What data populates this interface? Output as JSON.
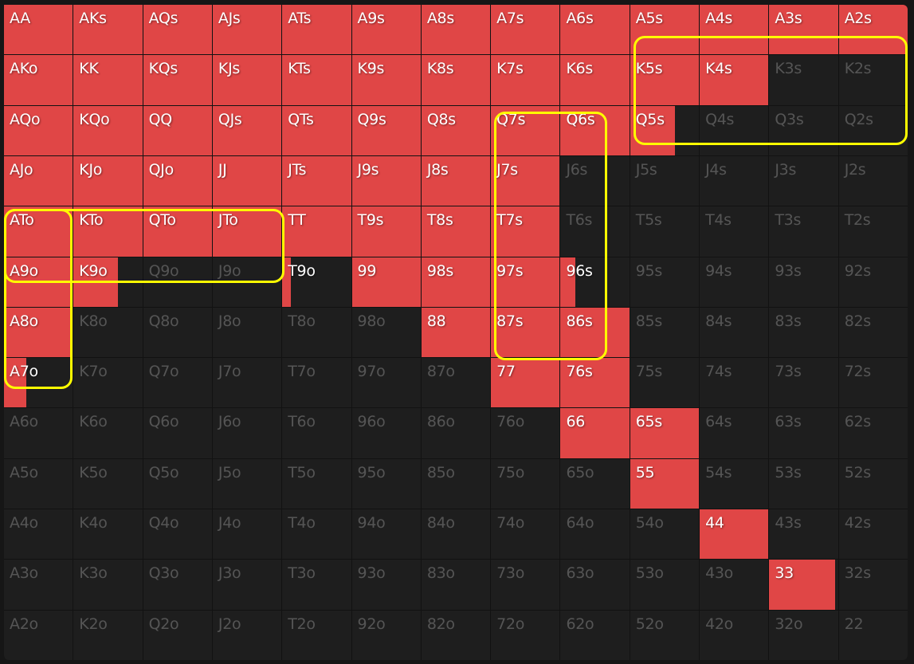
{
  "colors": {
    "raise": "#e04646",
    "empty": "#1e1e1e",
    "highlight": "#ffff00",
    "label_active": "#ffffff",
    "label_inactive": "#555555"
  },
  "hands": [
    [
      "AA",
      "AKs",
      "AQs",
      "AJs",
      "ATs",
      "A9s",
      "A8s",
      "A7s",
      "A6s",
      "A5s",
      "A4s",
      "A3s",
      "A2s"
    ],
    [
      "AKo",
      "KK",
      "KQs",
      "KJs",
      "KTs",
      "K9s",
      "K8s",
      "K7s",
      "K6s",
      "K5s",
      "K4s",
      "K3s",
      "K2s"
    ],
    [
      "AQo",
      "KQo",
      "QQ",
      "QJs",
      "QTs",
      "Q9s",
      "Q8s",
      "Q7s",
      "Q6s",
      "Q5s",
      "Q4s",
      "Q3s",
      "Q2s"
    ],
    [
      "AJo",
      "KJo",
      "QJo",
      "JJ",
      "JTs",
      "J9s",
      "J8s",
      "J7s",
      "J6s",
      "J5s",
      "J4s",
      "J3s",
      "J2s"
    ],
    [
      "ATo",
      "KTo",
      "QTo",
      "JTo",
      "TT",
      "T9s",
      "T8s",
      "T7s",
      "T6s",
      "T5s",
      "T4s",
      "T3s",
      "T2s"
    ],
    [
      "A9o",
      "K9o",
      "Q9o",
      "J9o",
      "T9o",
      "99",
      "98s",
      "97s",
      "96s",
      "95s",
      "94s",
      "93s",
      "92s"
    ],
    [
      "A8o",
      "K8o",
      "Q8o",
      "J8o",
      "T8o",
      "98o",
      "88",
      "87s",
      "86s",
      "85s",
      "84s",
      "83s",
      "82s"
    ],
    [
      "A7o",
      "K7o",
      "Q7o",
      "J7o",
      "T7o",
      "97o",
      "87o",
      "77",
      "76s",
      "75s",
      "74s",
      "73s",
      "72s"
    ],
    [
      "A6o",
      "K6o",
      "Q6o",
      "J6o",
      "T6o",
      "96o",
      "86o",
      "76o",
      "66",
      "65s",
      "64s",
      "63s",
      "62s"
    ],
    [
      "A5o",
      "K5o",
      "Q5o",
      "J5o",
      "T5o",
      "95o",
      "85o",
      "75o",
      "65o",
      "55",
      "54s",
      "53s",
      "52s"
    ],
    [
      "A4o",
      "K4o",
      "Q4o",
      "J4o",
      "T4o",
      "94o",
      "84o",
      "74o",
      "64o",
      "54o",
      "44",
      "43s",
      "42s"
    ],
    [
      "A3o",
      "K3o",
      "Q3o",
      "J3o",
      "T3o",
      "93o",
      "83o",
      "73o",
      "63o",
      "53o",
      "43o",
      "33",
      "32s"
    ],
    [
      "A2o",
      "K2o",
      "Q2o",
      "J2o",
      "T2o",
      "92o",
      "82o",
      "72o",
      "62o",
      "52o",
      "42o",
      "32o",
      "22"
    ]
  ],
  "frequencies": [
    [
      1,
      1,
      1,
      1,
      1,
      1,
      1,
      1,
      1,
      1,
      1,
      1,
      1
    ],
    [
      1,
      1,
      1,
      1,
      1,
      1,
      1,
      1,
      1,
      1,
      1,
      0,
      0
    ],
    [
      1,
      1,
      1,
      1,
      1,
      1,
      1,
      1,
      1,
      0.65,
      0,
      0,
      0
    ],
    [
      1,
      1,
      1,
      1,
      1,
      1,
      1,
      1,
      0,
      0,
      0,
      0,
      0
    ],
    [
      1,
      1,
      1,
      1,
      1,
      1,
      1,
      1,
      0,
      0,
      0,
      0,
      0
    ],
    [
      1,
      0.65,
      0,
      0,
      0.12,
      1,
      1,
      1,
      0.21,
      0,
      0,
      0,
      0
    ],
    [
      1,
      0,
      0,
      0,
      0,
      0,
      1,
      1,
      1,
      0,
      0,
      0,
      0
    ],
    [
      0.32,
      0,
      0,
      0,
      0,
      0,
      0,
      1,
      1,
      0,
      0,
      0,
      0
    ],
    [
      0,
      0,
      0,
      0,
      0,
      0,
      0,
      0,
      1,
      1,
      0,
      0,
      0
    ],
    [
      0,
      0,
      0,
      0,
      0,
      0,
      0,
      0,
      0,
      1,
      0,
      0,
      0
    ],
    [
      0,
      0,
      0,
      0,
      0,
      0,
      0,
      0,
      0,
      0,
      1,
      0,
      0
    ],
    [
      0,
      0,
      0,
      0,
      0,
      0,
      0,
      0,
      0,
      0,
      0,
      0.96,
      0
    ],
    [
      0,
      0,
      0,
      0,
      0,
      0,
      0,
      0,
      0,
      0,
      0,
      0,
      0
    ]
  ],
  "highlight_groups": [
    [
      "K5s",
      "K4s",
      "K3s",
      "K2s",
      "Q5s",
      "Q4s",
      "Q3s",
      "Q2s"
    ],
    [
      "Q7s",
      "Q6s",
      "J7s",
      "J6s",
      "T7s",
      "T6s",
      "97s",
      "96s",
      "87s",
      "86s"
    ],
    [
      "ATo",
      "KTo",
      "QTo",
      "JTo",
      "A9o",
      "K9o",
      "Q9o",
      "J9o"
    ],
    [
      "ATo",
      "A9o",
      "A8o",
      "A7o"
    ]
  ]
}
